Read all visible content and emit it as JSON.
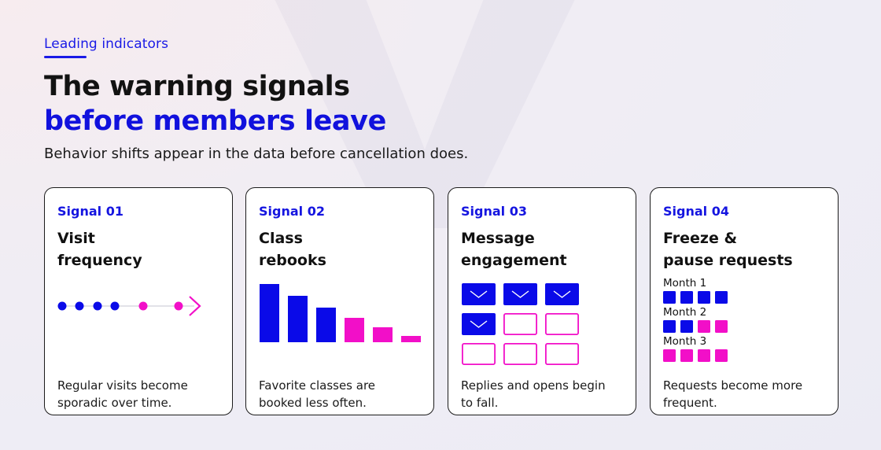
{
  "eyebrow": "Leading indicators",
  "title": {
    "line1": "The warning signals",
    "line2": "before members leave"
  },
  "subtitle": "Behavior shifts appear in the data before cancellation does.",
  "colors": {
    "blue": "#0a0ae8",
    "magenta": "#f20fc8",
    "text": "#111111"
  },
  "cards": [
    {
      "tag": "Signal 01",
      "heading": [
        "Visit",
        "frequency"
      ],
      "desc": [
        "Regular visits become",
        "sporadic over time."
      ],
      "visual": {
        "type": "visit-dots",
        "visits": [
          {
            "color": "blue"
          },
          {
            "color": "blue"
          },
          {
            "color": "blue"
          },
          {
            "color": "blue"
          },
          {
            "color": "magenta"
          },
          {
            "color": "magenta"
          }
        ]
      }
    },
    {
      "tag": "Signal 02",
      "heading": [
        "Class",
        "rebooks"
      ],
      "desc": [
        "Favorite classes are",
        "booked less often."
      ],
      "visual": {
        "type": "declining-bars",
        "values": [
          74,
          59,
          44,
          31,
          19,
          8
        ],
        "colors": [
          "blue",
          "blue",
          "blue",
          "magenta",
          "magenta",
          "magenta"
        ]
      }
    },
    {
      "tag": "Signal 03",
      "heading": [
        "Message",
        "engagement"
      ],
      "desc": [
        "Replies and opens begin",
        "to fall."
      ],
      "visual": {
        "type": "envelope-grid",
        "cells": [
          "opened",
          "opened",
          "opened",
          "opened",
          "unopened",
          "unopened",
          "unopened",
          "unopened",
          "unopened"
        ]
      }
    },
    {
      "tag": "Signal 04",
      "heading": [
        "Freeze &",
        "pause requests"
      ],
      "desc": [
        "Requests become more",
        "frequent."
      ],
      "visual": {
        "type": "monthly-squares",
        "months": [
          {
            "label": "Month 1",
            "squares": [
              "blue",
              "blue",
              "blue",
              "blue"
            ]
          },
          {
            "label": "Month 2",
            "squares": [
              "blue",
              "blue",
              "magenta",
              "magenta"
            ]
          },
          {
            "label": "Month 3",
            "squares": [
              "magenta",
              "magenta",
              "magenta",
              "magenta"
            ]
          }
        ]
      }
    }
  ]
}
